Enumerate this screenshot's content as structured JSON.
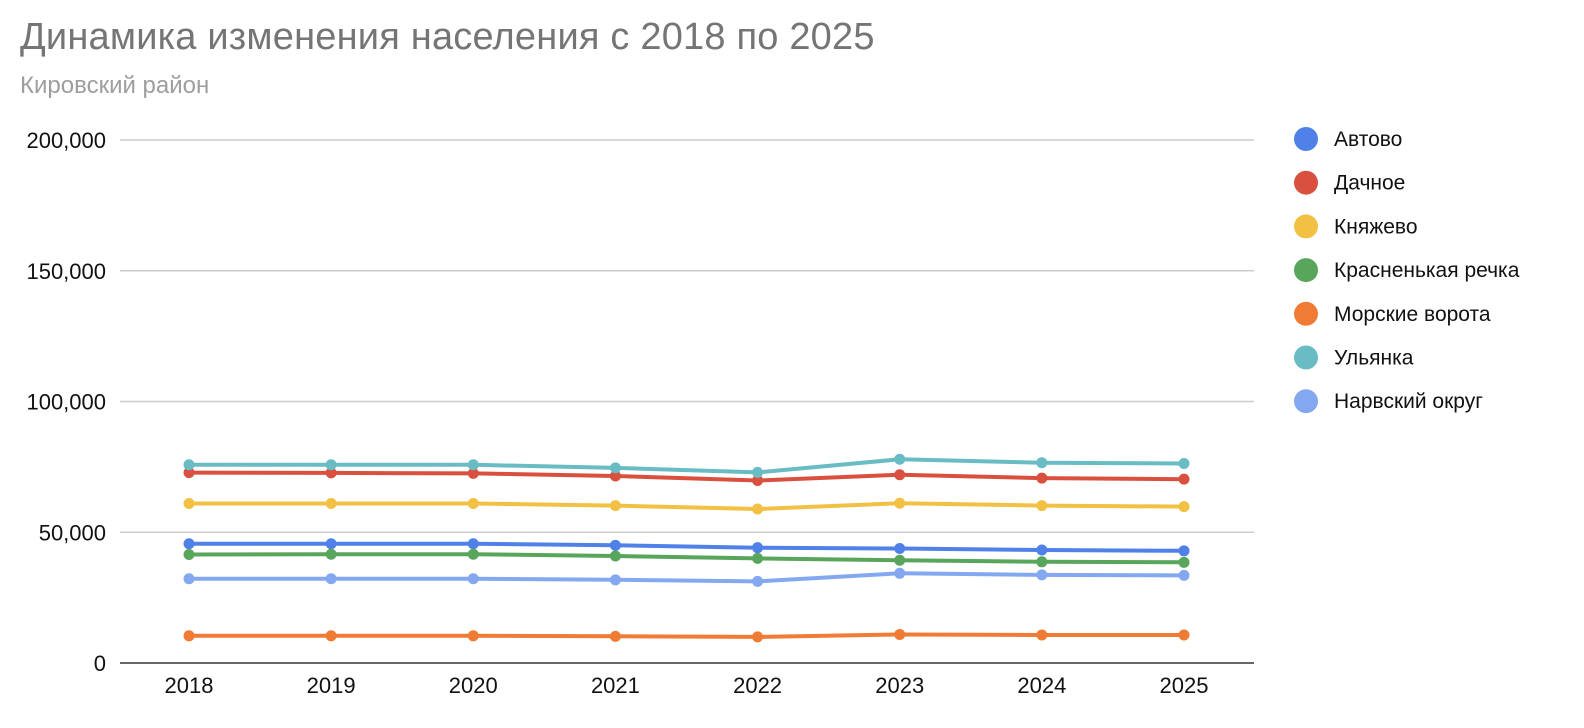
{
  "chart_data": {
    "type": "line",
    "title": "Динамика изменения населения с 2018 по 2025",
    "subtitle": "Кировский район",
    "xlabel": "",
    "ylabel": "",
    "categories": [
      "2018",
      "2019",
      "2020",
      "2021",
      "2022",
      "2023",
      "2024",
      "2025"
    ],
    "ylim": [
      0,
      200000
    ],
    "yticks": [
      0,
      50000,
      100000,
      150000,
      200000
    ],
    "ytick_labels": [
      "0",
      "50,000",
      "100,000",
      "150,000",
      "200,000"
    ],
    "grid": true,
    "legend_position": "right",
    "series": [
      {
        "name": "Автово",
        "color": "#4f81e8",
        "values": [
          45600,
          45600,
          45600,
          45000,
          44100,
          43800,
          43200,
          42900
        ]
      },
      {
        "name": "Дачное",
        "color": "#d9503f",
        "values": [
          72800,
          72700,
          72500,
          71500,
          69800,
          72000,
          70700,
          70300
        ]
      },
      {
        "name": "Княжево",
        "color": "#f2c042",
        "values": [
          61000,
          61000,
          61000,
          60200,
          58900,
          61100,
          60200,
          59800
        ]
      },
      {
        "name": "Красненькая речка",
        "color": "#58a55c",
        "values": [
          41500,
          41600,
          41600,
          40900,
          40000,
          39300,
          38700,
          38500
        ]
      },
      {
        "name": "Морские ворота",
        "color": "#ef7b34",
        "values": [
          10400,
          10400,
          10400,
          10200,
          10000,
          10900,
          10700,
          10700
        ]
      },
      {
        "name": "Ульянка",
        "color": "#69bcc4",
        "values": [
          75800,
          75800,
          75800,
          74600,
          72900,
          77900,
          76600,
          76300
        ]
      },
      {
        "name": "Нарвский округ",
        "color": "#83a8f0",
        "values": [
          32200,
          32200,
          32200,
          31800,
          31200,
          34300,
          33700,
          33500
        ]
      }
    ]
  }
}
